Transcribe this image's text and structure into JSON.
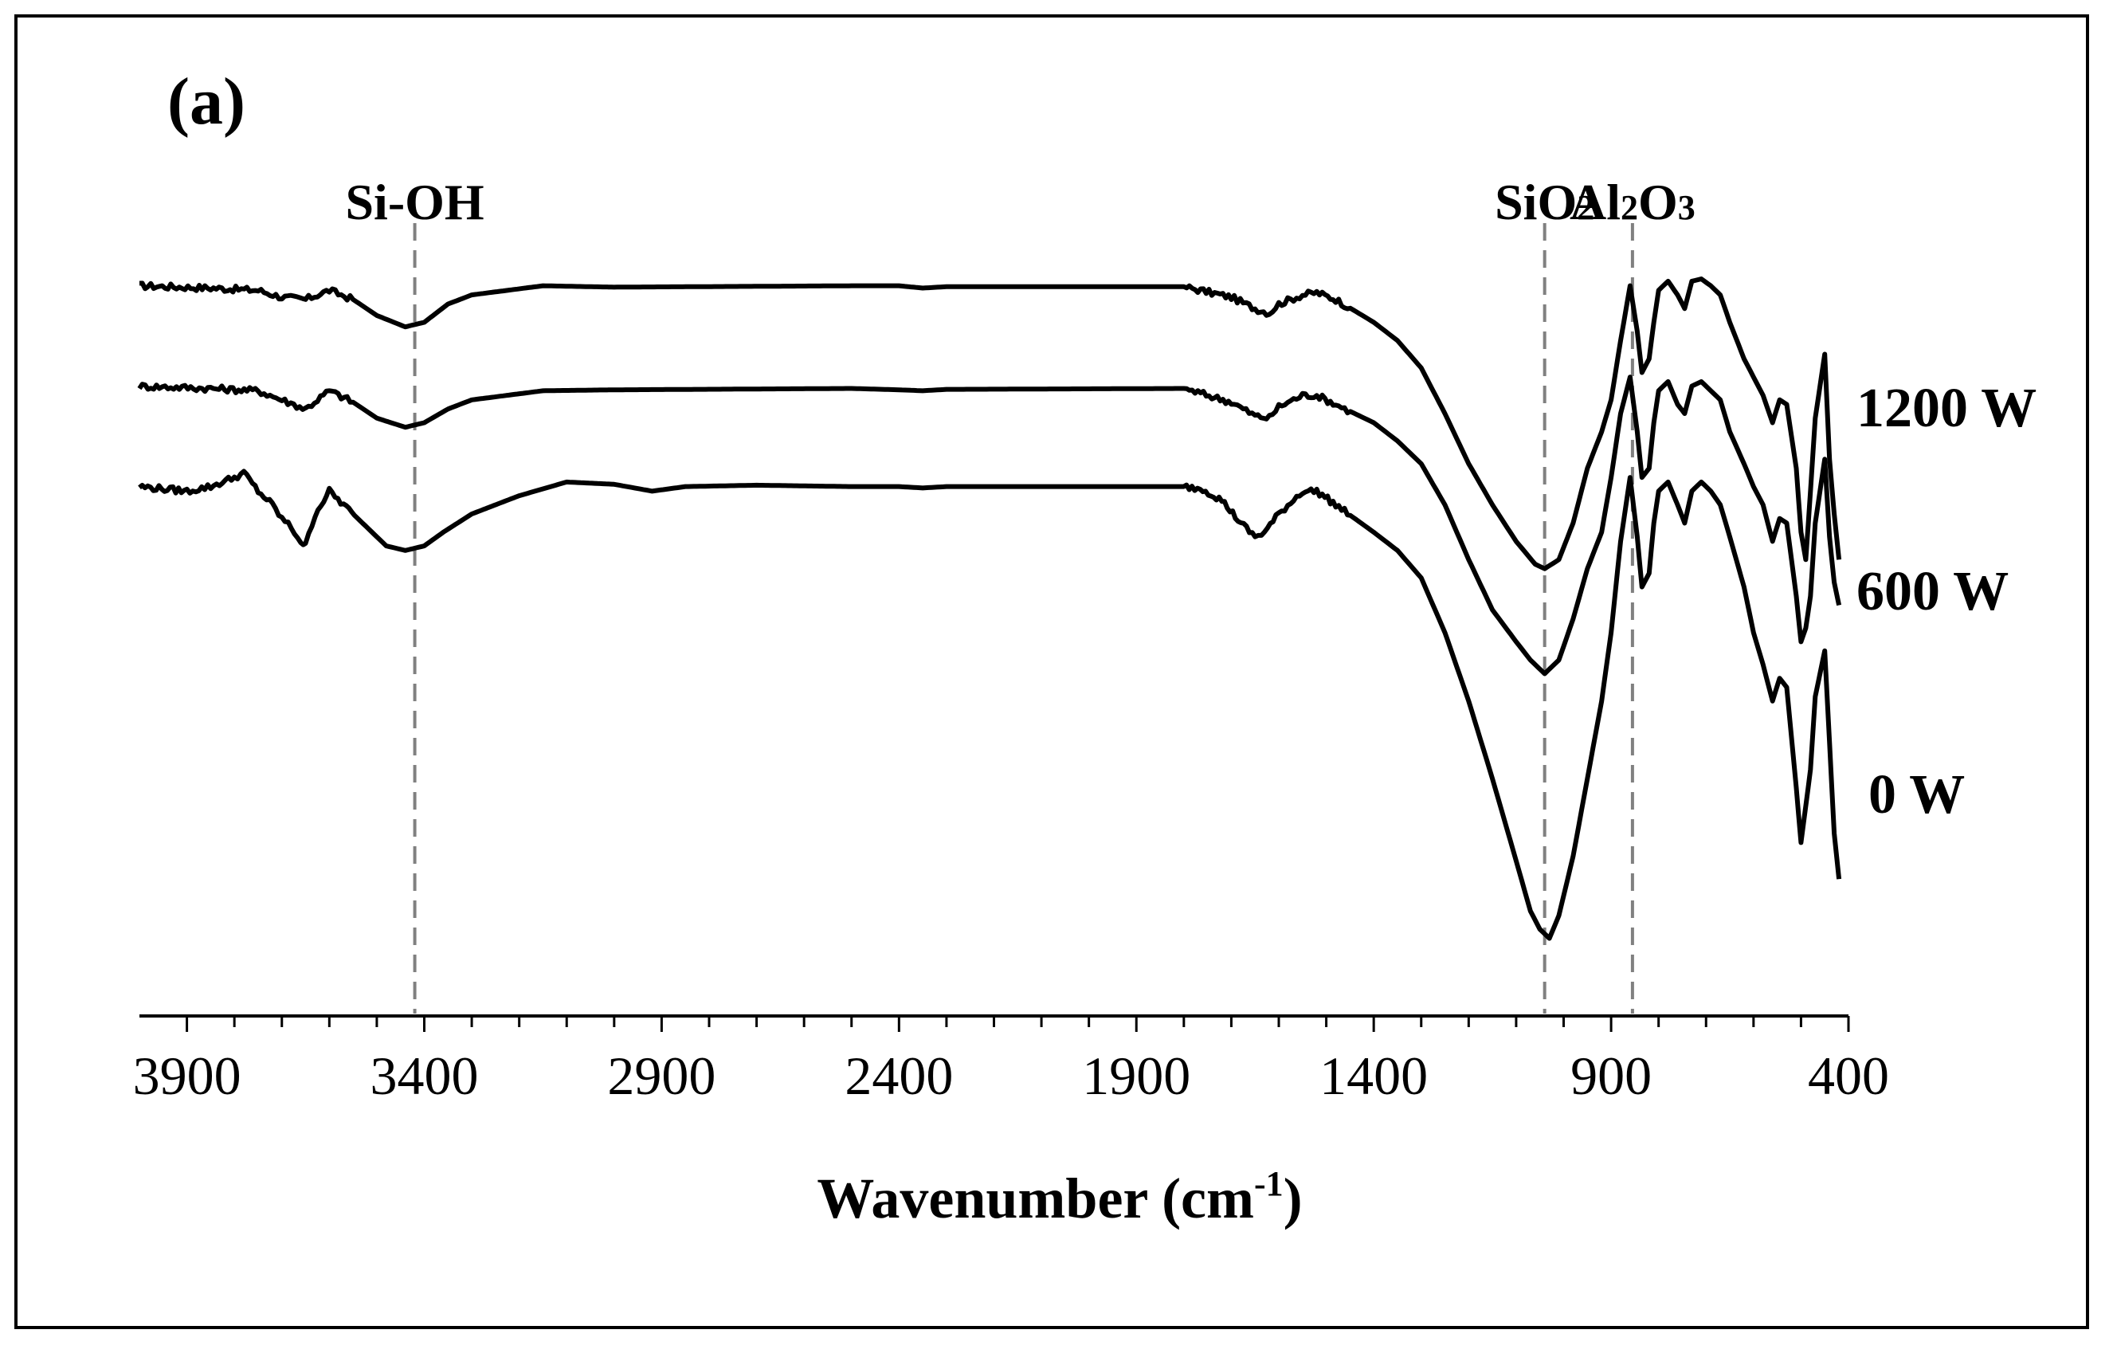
{
  "chart_data": {
    "type": "line",
    "panel_label": "(a)",
    "title": "",
    "xlabel": "Wavenumber (cm",
    "xlabel_sup": "-1",
    "xlabel_close": ")",
    "ylabel": "",
    "xlim": [
      4000,
      400
    ],
    "x_reversed": true,
    "ylim": [
      -60,
      105
    ],
    "grid": false,
    "x_ticks": [
      3900,
      3400,
      2900,
      2400,
      1900,
      1400,
      900,
      400
    ],
    "x_tick_labels": [
      "3900",
      "3400",
      "2900",
      "2400",
      "1900",
      "1400",
      "900",
      "400"
    ],
    "annotations": [
      {
        "label": "Si-OH",
        "base": "Si-OH",
        "sub1": "",
        "mid": "",
        "sub2": "",
        "x": 3420
      },
      {
        "label": "SiO2",
        "base": "SiO",
        "sub1": "2",
        "mid": "",
        "sub2": "",
        "x": 1040
      },
      {
        "label": "Al2O3",
        "base": "Al",
        "sub1": "2",
        "mid": "O",
        "sub2": "3",
        "x": 855
      }
    ],
    "series": [
      {
        "name": "1200 W",
        "label": "1200 W",
        "points": [
          [
            4000,
            100
          ],
          [
            3850,
            99.5
          ],
          [
            3750,
            99
          ],
          [
            3700,
            97.5
          ],
          [
            3650,
            97
          ],
          [
            3600,
            99
          ],
          [
            3550,
            97
          ],
          [
            3500,
            93.5
          ],
          [
            3440,
            91
          ],
          [
            3400,
            92
          ],
          [
            3350,
            96
          ],
          [
            3300,
            98
          ],
          [
            3150,
            100
          ],
          [
            3000,
            99.7
          ],
          [
            2500,
            100
          ],
          [
            2400,
            100
          ],
          [
            2350,
            99.5
          ],
          [
            2300,
            99.8
          ],
          [
            1800,
            99.8
          ],
          [
            1700,
            97.5
          ],
          [
            1650,
            95
          ],
          [
            1620,
            94
          ],
          [
            1600,
            96
          ],
          [
            1550,
            98
          ],
          [
            1520,
            98.5
          ],
          [
            1480,
            97
          ],
          [
            1400,
            92
          ],
          [
            1350,
            88
          ],
          [
            1300,
            82
          ],
          [
            1250,
            72
          ],
          [
            1200,
            61
          ],
          [
            1150,
            52
          ],
          [
            1100,
            44
          ],
          [
            1060,
            39
          ],
          [
            1040,
            38
          ],
          [
            1010,
            40
          ],
          [
            980,
            48
          ],
          [
            950,
            60
          ],
          [
            920,
            68
          ],
          [
            900,
            75
          ],
          [
            880,
            88
          ],
          [
            860,
            100
          ],
          [
            845,
            90
          ],
          [
            835,
            81
          ],
          [
            820,
            84
          ],
          [
            810,
            92
          ],
          [
            800,
            99
          ],
          [
            780,
            101
          ],
          [
            760,
            98
          ],
          [
            745,
            95
          ],
          [
            730,
            101
          ],
          [
            710,
            101.5
          ],
          [
            690,
            100
          ],
          [
            670,
            98
          ],
          [
            650,
            92
          ],
          [
            620,
            84
          ],
          [
            600,
            80
          ],
          [
            580,
            76
          ],
          [
            560,
            70
          ],
          [
            545,
            75
          ],
          [
            530,
            74
          ],
          [
            510,
            60
          ],
          [
            500,
            46
          ],
          [
            490,
            40
          ],
          [
            480,
            55
          ],
          [
            470,
            71
          ],
          [
            450,
            85
          ],
          [
            440,
            62
          ],
          [
            430,
            50
          ],
          [
            420,
            40
          ]
        ]
      },
      {
        "name": "600 W",
        "label": "600 W",
        "points": [
          [
            4000,
            78
          ],
          [
            3850,
            77.5
          ],
          [
            3750,
            77
          ],
          [
            3700,
            75
          ],
          [
            3650,
            73
          ],
          [
            3600,
            77
          ],
          [
            3550,
            74.5
          ],
          [
            3500,
            71
          ],
          [
            3440,
            69
          ],
          [
            3400,
            70
          ],
          [
            3350,
            73
          ],
          [
            3300,
            75
          ],
          [
            3150,
            77
          ],
          [
            3000,
            77.2
          ],
          [
            2500,
            77.5
          ],
          [
            2400,
            77.2
          ],
          [
            2350,
            77
          ],
          [
            2300,
            77.3
          ],
          [
            1800,
            77.5
          ],
          [
            1700,
            74.5
          ],
          [
            1650,
            71.5
          ],
          [
            1620,
            71
          ],
          [
            1600,
            73.5
          ],
          [
            1550,
            76
          ],
          [
            1520,
            76
          ],
          [
            1480,
            74
          ],
          [
            1400,
            70
          ],
          [
            1350,
            66
          ],
          [
            1300,
            61
          ],
          [
            1250,
            52
          ],
          [
            1200,
            40
          ],
          [
            1150,
            29
          ],
          [
            1100,
            22
          ],
          [
            1070,
            18
          ],
          [
            1040,
            15
          ],
          [
            1010,
            18
          ],
          [
            980,
            27
          ],
          [
            950,
            38
          ],
          [
            920,
            46
          ],
          [
            900,
            58
          ],
          [
            880,
            72
          ],
          [
            860,
            80
          ],
          [
            845,
            68
          ],
          [
            835,
            58
          ],
          [
            820,
            60
          ],
          [
            810,
            70
          ],
          [
            800,
            77
          ],
          [
            780,
            79
          ],
          [
            760,
            74
          ],
          [
            745,
            72
          ],
          [
            730,
            78
          ],
          [
            710,
            79
          ],
          [
            690,
            77
          ],
          [
            670,
            75
          ],
          [
            650,
            68
          ],
          [
            620,
            61
          ],
          [
            600,
            56
          ],
          [
            580,
            52
          ],
          [
            560,
            44
          ],
          [
            545,
            49
          ],
          [
            530,
            48
          ],
          [
            510,
            32
          ],
          [
            500,
            22
          ],
          [
            490,
            25
          ],
          [
            480,
            32
          ],
          [
            470,
            48
          ],
          [
            450,
            62
          ],
          [
            440,
            45
          ],
          [
            430,
            35
          ],
          [
            420,
            30
          ]
        ]
      },
      {
        "name": "0 W",
        "label": "0 W",
        "points": [
          [
            4000,
            56
          ],
          [
            3900,
            55
          ],
          [
            3850,
            56
          ],
          [
            3800,
            58
          ],
          [
            3780,
            59
          ],
          [
            3750,
            55
          ],
          [
            3720,
            52
          ],
          [
            3700,
            49
          ],
          [
            3680,
            47
          ],
          [
            3660,
            44
          ],
          [
            3650,
            43
          ],
          [
            3630,
            50
          ],
          [
            3600,
            55
          ],
          [
            3570,
            52
          ],
          [
            3530,
            48
          ],
          [
            3480,
            43
          ],
          [
            3440,
            42
          ],
          [
            3400,
            43
          ],
          [
            3360,
            46
          ],
          [
            3300,
            50
          ],
          [
            3200,
            54
          ],
          [
            3100,
            57
          ],
          [
            3000,
            56.5
          ],
          [
            2920,
            55
          ],
          [
            2850,
            56
          ],
          [
            2700,
            56.3
          ],
          [
            2500,
            56
          ],
          [
            2400,
            56
          ],
          [
            2350,
            55.7
          ],
          [
            2300,
            56
          ],
          [
            1800,
            56
          ],
          [
            1760,
            55.5
          ],
          [
            1720,
            53
          ],
          [
            1680,
            48
          ],
          [
            1650,
            45
          ],
          [
            1630,
            46
          ],
          [
            1600,
            50
          ],
          [
            1550,
            55
          ],
          [
            1520,
            55
          ],
          [
            1480,
            52
          ],
          [
            1400,
            46
          ],
          [
            1350,
            42
          ],
          [
            1300,
            36
          ],
          [
            1250,
            24
          ],
          [
            1200,
            9
          ],
          [
            1150,
            -8
          ],
          [
            1100,
            -26
          ],
          [
            1070,
            -37
          ],
          [
            1050,
            -41
          ],
          [
            1030,
            -43
          ],
          [
            1010,
            -38
          ],
          [
            980,
            -25
          ],
          [
            950,
            -8
          ],
          [
            920,
            9
          ],
          [
            900,
            24
          ],
          [
            880,
            44
          ],
          [
            860,
            58
          ],
          [
            845,
            45
          ],
          [
            835,
            34
          ],
          [
            820,
            37
          ],
          [
            810,
            48
          ],
          [
            800,
            55
          ],
          [
            780,
            57
          ],
          [
            760,
            52
          ],
          [
            745,
            48
          ],
          [
            730,
            55
          ],
          [
            710,
            57
          ],
          [
            690,
            55
          ],
          [
            670,
            52
          ],
          [
            650,
            45
          ],
          [
            620,
            34
          ],
          [
            600,
            24
          ],
          [
            580,
            17
          ],
          [
            560,
            9
          ],
          [
            545,
            14
          ],
          [
            530,
            12
          ],
          [
            510,
            -10
          ],
          [
            500,
            -22
          ],
          [
            490,
            -14
          ],
          [
            480,
            -6
          ],
          [
            470,
            10
          ],
          [
            450,
            20
          ],
          [
            440,
            0
          ],
          [
            430,
            -20
          ],
          [
            420,
            -30
          ]
        ]
      }
    ]
  }
}
